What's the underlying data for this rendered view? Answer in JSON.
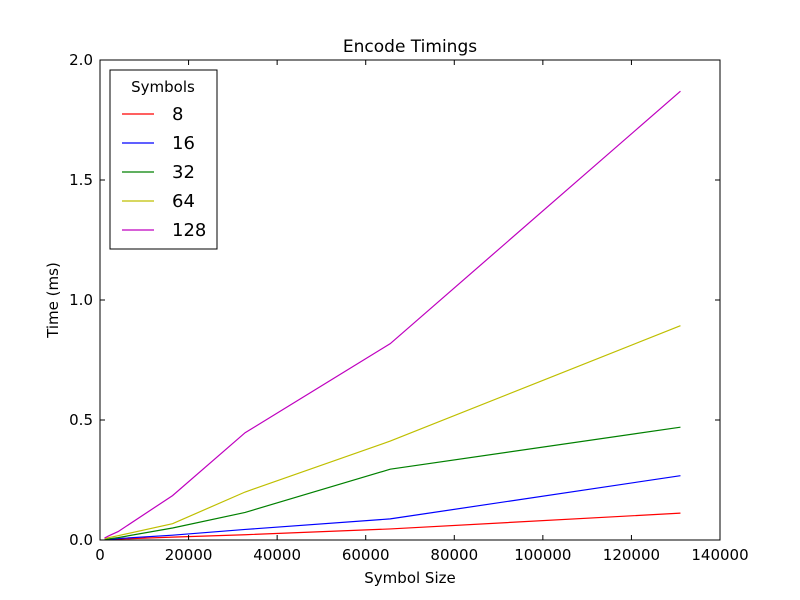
{
  "chart_data": {
    "type": "line",
    "title": "Encode Timings",
    "xlabel": "Symbol Size",
    "ylabel": "Time (ms)",
    "xlim": [
      0,
      140000
    ],
    "ylim": [
      0,
      2.0
    ],
    "xticks": [
      0,
      20000,
      40000,
      60000,
      80000,
      100000,
      120000,
      140000
    ],
    "xtick_labels": [
      "0",
      "20000",
      "40000",
      "60000",
      "80000",
      "100000",
      "120000",
      "140000"
    ],
    "yticks": [
      0,
      0.5,
      1.0,
      1.5,
      2.0
    ],
    "ytick_labels": [
      "0.0",
      "0.5",
      "1.0",
      "1.5",
      "2.0"
    ],
    "grid": false,
    "legend": {
      "title": "Symbols",
      "placement": "top-left"
    },
    "x": [
      1024,
      2048,
      4096,
      16384,
      32768,
      65536,
      131072
    ],
    "series": [
      {
        "name": "8",
        "color": "#ff0000",
        "values": [
          0.001,
          0.002,
          0.004,
          0.012,
          0.022,
          0.046,
          0.112
        ]
      },
      {
        "name": "16",
        "color": "#0000ff",
        "values": [
          0.002,
          0.003,
          0.006,
          0.02,
          0.044,
          0.088,
          0.268
        ]
      },
      {
        "name": "32",
        "color": "#008000",
        "values": [
          0.003,
          0.005,
          0.01,
          0.05,
          0.115,
          0.295,
          0.47
        ]
      },
      {
        "name": "64",
        "color": "#bfbf00",
        "values": [
          0.005,
          0.01,
          0.018,
          0.068,
          0.2,
          0.412,
          0.893
        ]
      },
      {
        "name": "128",
        "color": "#bf00bf",
        "values": [
          0.008,
          0.018,
          0.035,
          0.185,
          0.447,
          0.818,
          1.87
        ]
      }
    ]
  }
}
